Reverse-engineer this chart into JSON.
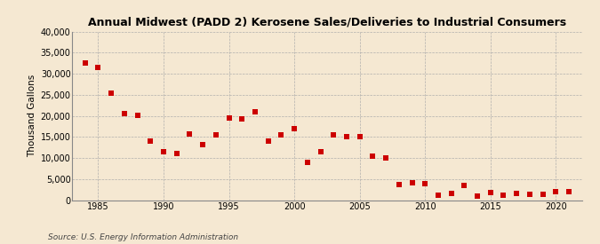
{
  "title": "Annual Midwest (PADD 2) Kerosene Sales/Deliveries to Industrial Consumers",
  "ylabel": "Thousand Gallons",
  "source": "Source: U.S. Energy Information Administration",
  "background_color": "#f5e8d2",
  "plot_bg_color": "#f5e8d2",
  "marker_color": "#cc0000",
  "marker": "s",
  "marker_size": 16,
  "ylim": [
    0,
    40000
  ],
  "yticks": [
    0,
    5000,
    10000,
    15000,
    20000,
    25000,
    30000,
    35000,
    40000
  ],
  "xlim": [
    1983.0,
    2022.0
  ],
  "xticks": [
    1985,
    1990,
    1995,
    2000,
    2005,
    2010,
    2015,
    2020
  ],
  "years": [
    1984,
    1985,
    1986,
    1987,
    1988,
    1989,
    1990,
    1991,
    1992,
    1993,
    1994,
    1995,
    1996,
    1997,
    1998,
    1999,
    2000,
    2001,
    2002,
    2003,
    2004,
    2005,
    2006,
    2007,
    2008,
    2009,
    2010,
    2011,
    2012,
    2013,
    2014,
    2015,
    2016,
    2017,
    2018,
    2019,
    2020,
    2021
  ],
  "values": [
    32500,
    31500,
    25500,
    20500,
    20200,
    14000,
    11500,
    11000,
    15800,
    13200,
    15500,
    19500,
    19200,
    21000,
    14000,
    15500,
    17000,
    9000,
    11500,
    15500,
    15000,
    15000,
    10500,
    10000,
    3700,
    4200,
    4000,
    1200,
    1500,
    3500,
    1000,
    1800,
    1200,
    1500,
    1300,
    1300,
    2000,
    2000
  ]
}
